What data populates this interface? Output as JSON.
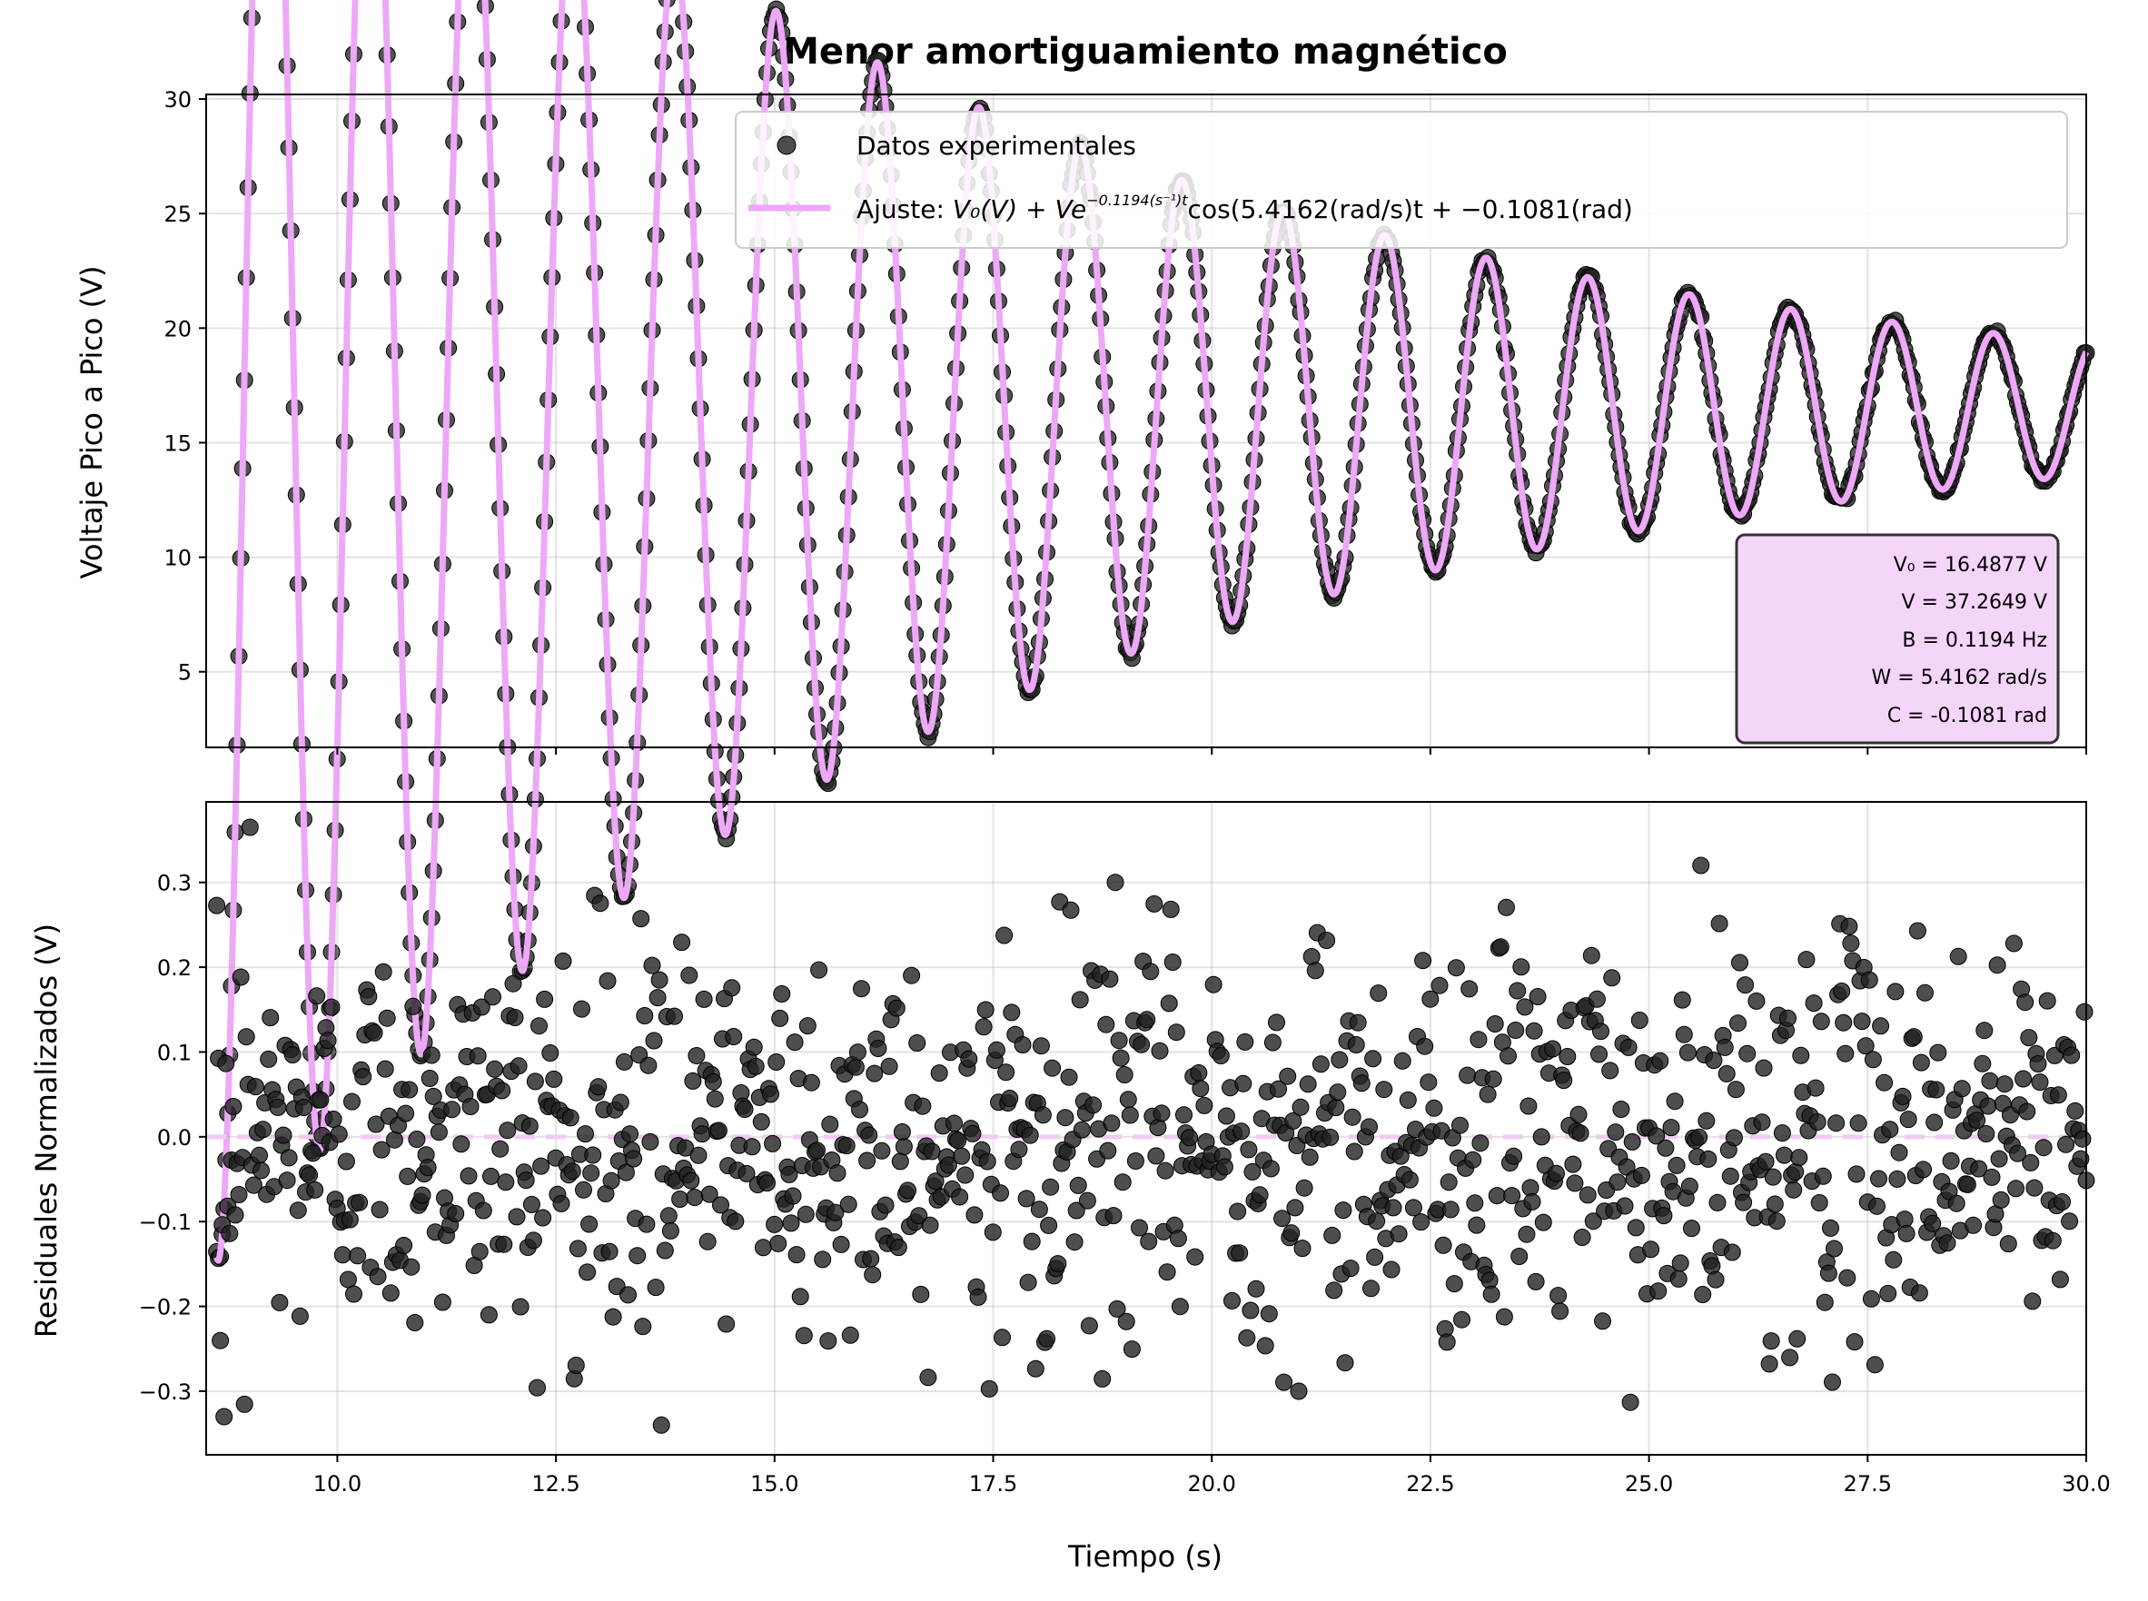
{
  "chart_data": [
    {
      "type": "scatter",
      "title": "Menor amortiguamiento magnético",
      "xlabel": "",
      "ylabel": "Voltaje Pico a Pico (V)",
      "xlim": [
        8.5,
        30.0
      ],
      "ylim": [
        1.7,
        30.2
      ],
      "xticks": [
        10.0,
        12.5,
        15.0,
        17.5,
        20.0,
        22.5,
        25.0,
        27.5,
        30.0
      ],
      "yticks": [
        5,
        10,
        15,
        20,
        25,
        30
      ],
      "grid": true,
      "legend_position": "top-right",
      "legend": {
        "scatter_label": "Datos experimentales",
        "fit_prefix": "Ajuste: ",
        "fit_formula": "V₀(V) + Ve",
        "fit_exponent": "−0.1194(s⁻¹)t",
        "fit_rest": "cos(5.4162(rad/s)t + −0.1081(rad)"
      },
      "fit_parameters": {
        "V0": 16.4877,
        "V": 37.2649,
        "B": 0.1194,
        "W": 5.4162,
        "C": -0.1081,
        "t0": 8.62,
        "lines": [
          "V₀ = 16.4877 V",
          "V = 37.2649 V",
          "B = 0.1194 Hz",
          "W = 5.4162 rad/s",
          "C = -0.1081 rad"
        ]
      },
      "series": [
        {
          "name": "Datos experimentales",
          "kind": "scatter",
          "color": "#222222",
          "x_range": [
            8.62,
            30.0
          ],
          "n_points": 1010
        },
        {
          "name": "Ajuste",
          "kind": "line",
          "color": "#eea8f8"
        }
      ]
    },
    {
      "type": "scatter",
      "title": "",
      "xlabel": "Tiempo (s)",
      "ylabel": "Residuales Normalizados (V)",
      "xlim": [
        8.5,
        30.0
      ],
      "ylim": [
        -0.375,
        0.395
      ],
      "xticks": [
        10.0,
        12.5,
        15.0,
        17.5,
        20.0,
        22.5,
        25.0,
        27.5,
        30.0
      ],
      "yticks": [
        -0.3,
        -0.2,
        -0.1,
        0.0,
        0.1,
        0.2,
        0.3
      ],
      "grid": true,
      "zero_line_color": "#f2c9f5",
      "series": [
        {
          "kind": "scatter",
          "color": "#222222",
          "x_range": [
            8.62,
            30.0
          ],
          "n_points": 1010,
          "notable_points": [
            {
              "x": 9.0,
              "y": 0.365
            },
            {
              "x": 25.6,
              "y": 0.32
            },
            {
              "x": 18.9,
              "y": 0.3
            },
            {
              "x": 13.7,
              "y": -0.34
            },
            {
              "x": 8.7,
              "y": -0.33
            },
            {
              "x": 21.0,
              "y": -0.3
            }
          ]
        }
      ]
    }
  ],
  "colors": {
    "points": "#222222",
    "fit_line": "#eea8f8",
    "stat_box_fill": "#f5d5fa",
    "stat_box_edge": "#333333"
  }
}
